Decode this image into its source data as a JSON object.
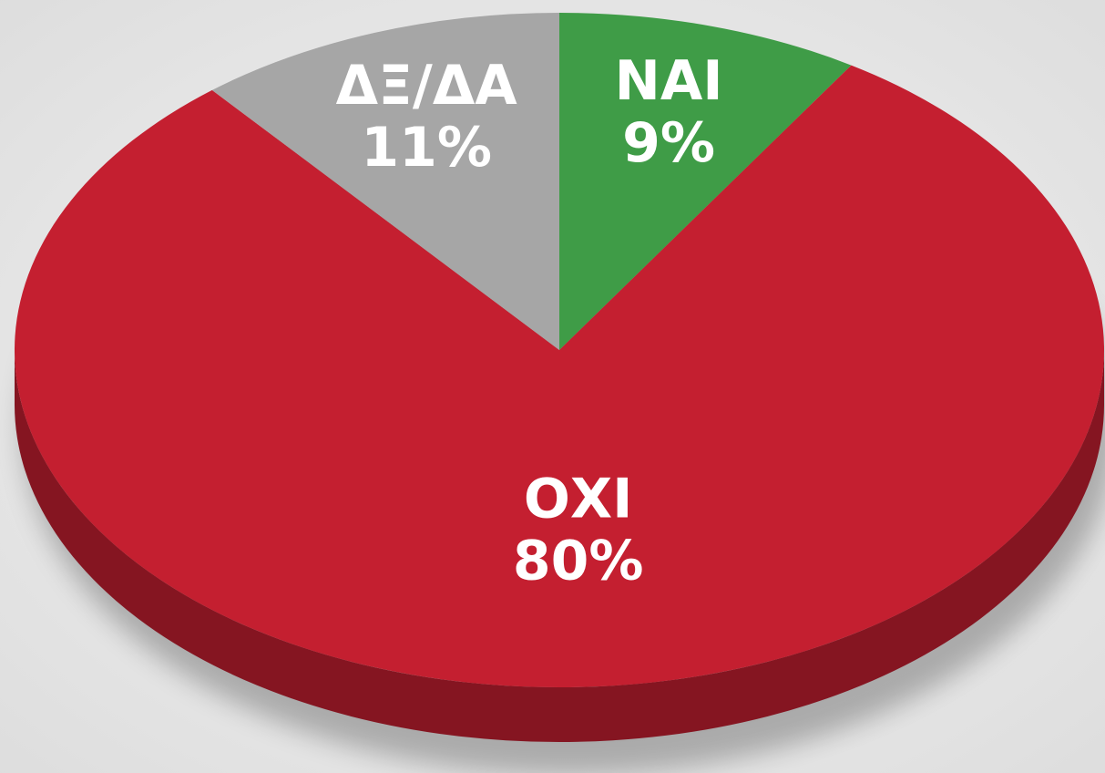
{
  "chart_data": {
    "type": "pie",
    "categories": [
      "ΝΑΙ",
      "ΟΧΙ",
      "ΔΞ/ΔΑ"
    ],
    "values": [
      9,
      80,
      11
    ],
    "value_labels": [
      "9%",
      "80%",
      "11%"
    ],
    "colors": [
      "#3f9c47",
      "#c41f30",
      "#a6a6a6"
    ]
  }
}
